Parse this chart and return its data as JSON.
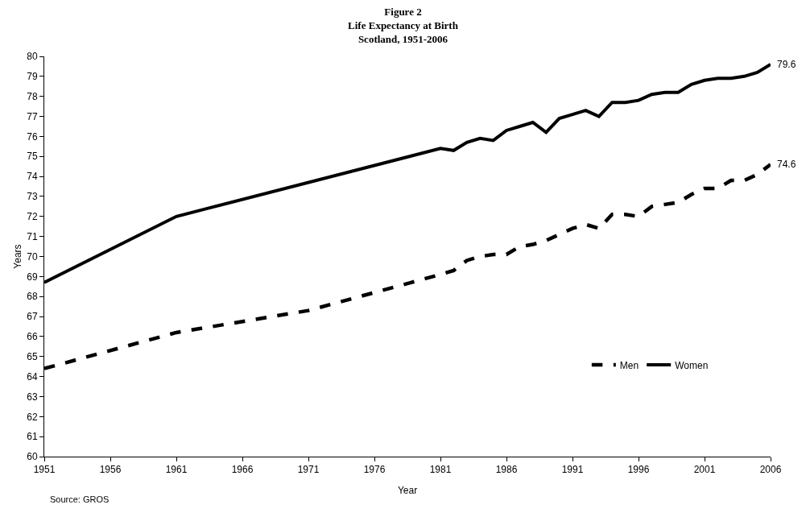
{
  "chart_data": {
    "type": "line",
    "title": "Figure 2\nLife Expectancy at Birth\nScotland, 1951-2006",
    "xlabel": "Year",
    "ylabel": "Years",
    "xlim": [
      1951,
      2006
    ],
    "xticks": [
      1951,
      1956,
      1961,
      1966,
      1971,
      1976,
      1981,
      1986,
      1991,
      1996,
      2001,
      2006
    ],
    "ylim": [
      60,
      80
    ],
    "yticks": [
      60,
      61,
      62,
      63,
      64,
      65,
      66,
      67,
      68,
      69,
      70,
      71,
      72,
      73,
      74,
      75,
      76,
      77,
      78,
      79,
      80
    ],
    "grid": false,
    "legend": "bottom right",
    "marker": "none",
    "series": [
      {
        "name": "Men",
        "color": "#000000",
        "line_style": "dashed",
        "x": [
          1951,
          1961,
          1971,
          1981,
          1982,
          1983,
          1984,
          1985,
          1986,
          1987,
          1988,
          1989,
          1990,
          1991,
          1992,
          1993,
          1994,
          1995,
          1996,
          1997,
          1998,
          1999,
          2000,
          2001,
          2002,
          2003,
          2004,
          2005,
          2006
        ],
        "values": [
          64.4,
          66.2,
          67.3,
          69.1,
          69.3,
          69.8,
          70.0,
          70.1,
          70.1,
          70.5,
          70.6,
          70.8,
          71.1,
          71.4,
          71.6,
          71.4,
          72.1,
          72.1,
          72.0,
          72.5,
          72.6,
          72.7,
          73.1,
          73.4,
          73.4,
          73.8,
          73.8,
          74.1,
          74.6
        ]
      },
      {
        "name": "Women",
        "color": "#000000",
        "line_style": "solid",
        "x": [
          1951,
          1961,
          1981,
          1982,
          1983,
          1984,
          1985,
          1986,
          1987,
          1988,
          1989,
          1990,
          1991,
          1992,
          1993,
          1994,
          1995,
          1996,
          1997,
          1998,
          1999,
          2000,
          2001,
          2002,
          2003,
          2004,
          2005,
          2006
        ],
        "values": [
          68.7,
          72.0,
          75.4,
          75.3,
          75.7,
          75.9,
          75.8,
          76.3,
          76.5,
          76.7,
          76.2,
          76.9,
          77.1,
          77.3,
          77.0,
          77.7,
          77.7,
          77.8,
          78.1,
          78.2,
          78.2,
          78.6,
          78.8,
          78.9,
          78.9,
          79.0,
          79.2,
          79.6
        ]
      }
    ],
    "annotations": [
      {
        "text": "79.6",
        "x": 2006,
        "y": 79.6
      },
      {
        "text": "74.6",
        "x": 2006,
        "y": 74.6
      },
      "Source: GROS"
    ]
  }
}
